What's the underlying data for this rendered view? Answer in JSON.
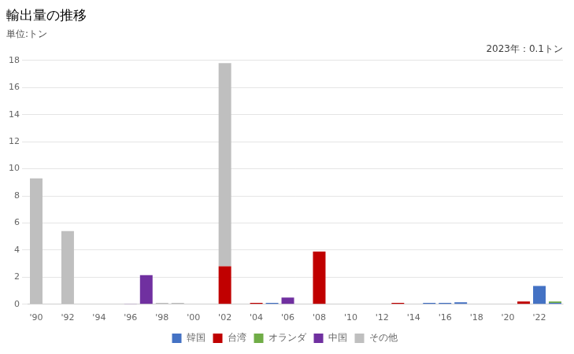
{
  "chart_data": {
    "type": "bar",
    "title": "輸出量の推移",
    "subtitle": "単位:トン",
    "annotation": "2023年：0.1トン",
    "stacked": true,
    "categories": [
      "'90",
      null,
      "'92",
      null,
      "'94",
      null,
      "'96",
      null,
      "'98",
      null,
      "'00",
      null,
      "'02",
      null,
      "'04",
      null,
      "'06",
      null,
      "'08",
      null,
      "'10",
      null,
      "'12",
      null,
      "'14",
      null,
      "'16",
      null,
      "'18",
      null,
      "'20",
      null,
      "'22",
      null
    ],
    "series": [
      {
        "name": "韓国",
        "color": "#4472c4",
        "values": [
          0,
          0,
          0,
          0,
          0,
          0,
          0,
          0,
          0,
          0,
          0,
          0,
          0,
          0,
          0,
          0.1,
          0,
          0,
          0,
          0,
          0,
          0,
          0,
          0,
          0,
          0.1,
          0.1,
          0.15,
          0,
          0,
          0,
          0,
          1.35,
          0.1
        ]
      },
      {
        "name": "台湾",
        "color": "#c00000",
        "values": [
          0,
          0,
          0,
          0,
          0,
          0,
          0,
          0,
          0,
          0,
          0,
          0,
          2.8,
          0,
          0.1,
          0,
          0,
          0,
          3.9,
          0,
          0,
          0,
          0,
          0.1,
          0,
          0,
          0,
          0,
          0,
          0,
          0,
          0.2,
          0,
          0
        ]
      },
      {
        "name": "オランダ",
        "color": "#70ad47",
        "values": [
          0,
          0,
          0,
          0,
          0,
          0,
          0,
          0,
          0,
          0,
          0,
          0,
          0,
          0,
          0,
          0,
          0,
          0,
          0,
          0,
          0,
          0,
          0,
          0,
          0,
          0,
          0,
          0,
          0,
          0,
          0,
          0,
          0,
          0.1
        ]
      },
      {
        "name": "中国",
        "color": "#7030a0",
        "values": [
          0,
          0,
          0,
          0,
          0,
          0,
          0.05,
          2.15,
          0,
          0,
          0,
          0,
          0,
          0,
          0,
          0,
          0.5,
          0,
          0,
          0,
          0,
          0,
          0,
          0,
          0,
          0,
          0,
          0,
          0,
          0,
          0,
          0,
          0,
          0
        ]
      },
      {
        "name": "その他",
        "color": "#bfbfbf",
        "values": [
          9.3,
          0,
          5.4,
          0,
          0,
          0,
          0,
          0,
          0.1,
          0.1,
          0,
          0,
          15.0,
          0,
          0,
          0,
          0,
          0,
          0,
          0,
          0,
          0,
          0,
          0,
          0,
          0,
          0,
          0,
          0,
          0,
          0,
          0,
          0,
          0
        ]
      }
    ],
    "ylim": [
      0,
      18
    ],
    "yticks": [
      0,
      2,
      4,
      6,
      8,
      10,
      12,
      14,
      16,
      18
    ],
    "grid": true,
    "legend": "bottom"
  }
}
